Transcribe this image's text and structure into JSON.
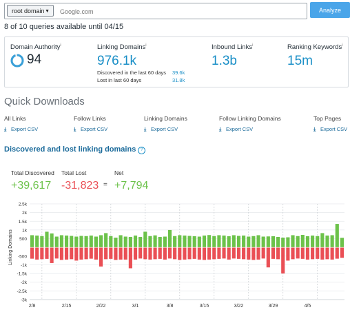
{
  "search": {
    "scope_label": "root domain",
    "placeholder": "Google.com",
    "analyze_label": "Analyze"
  },
  "quota_text": "8 of 10 queries available until 04/15",
  "metrics": {
    "domain_authority": {
      "label": "Domain Authority",
      "value": "94",
      "info": "i"
    },
    "linking_domains": {
      "label": "Linking Domains",
      "value": "976.1k",
      "info": "i",
      "discovered_label": "Discovered in the last 60 days",
      "discovered_value": "39.6k",
      "lost_label": "Lost in last 60 days",
      "lost_value": "31.8k"
    },
    "inbound_links": {
      "label": "Inbound Links",
      "value": "1.3b",
      "info": "i"
    },
    "ranking_keywords": {
      "label": "Ranking Keywords",
      "value": "15m",
      "info": "i"
    }
  },
  "quick_downloads": {
    "title": "Quick Downloads",
    "items": [
      {
        "label": "All Links",
        "link": "Export CSV"
      },
      {
        "label": "Follow Links",
        "link": "Export CSV"
      },
      {
        "label": "Linking Domains",
        "link": "Export CSV"
      },
      {
        "label": "Follow Linking Domains",
        "link": "Export CSV"
      },
      {
        "label": "Top Pages",
        "link": "Export CSV"
      }
    ]
  },
  "discovered_lost": {
    "title": "Discovered and lost linking domains",
    "total_discovered_label": "Total Discovered",
    "total_discovered_value": "+39,617",
    "total_lost_label": "Total Lost",
    "total_lost_value": "-31,823",
    "equals": "=",
    "net_label": "Net",
    "net_value": "+7,794"
  },
  "colors": {
    "accent": "#1a8fc7",
    "positive": "#6cc24a",
    "negative": "#ea4f55",
    "button": "#4aa5e9"
  },
  "chart_data": {
    "type": "bar",
    "ylabel": "Linking Domains",
    "ylim": [
      -3000,
      2500
    ],
    "yticks": [
      2500,
      2000,
      1500,
      1000,
      500,
      0,
      -500,
      -1000,
      -1500,
      -2000,
      -2500,
      -3000
    ],
    "ytick_labels": [
      "2.5k",
      "2k",
      "1.5k",
      "1k",
      "500",
      "",
      "-500",
      "-1k",
      "-1.5k",
      "-2k",
      "-2.5k",
      "-3k"
    ],
    "xtick_labels": [
      "2/8",
      "2/15",
      "2/22",
      "3/1",
      "3/8",
      "3/15",
      "3/22",
      "3/29",
      "4/5"
    ],
    "series": [
      {
        "name": "Discovered",
        "color": "#6cc24a",
        "values": [
          700,
          680,
          650,
          900,
          800,
          620,
          700,
          680,
          660,
          620,
          660,
          650,
          680,
          620,
          700,
          820,
          650,
          560,
          700,
          620,
          600,
          680,
          600,
          900,
          650,
          690,
          600,
          620,
          1000,
          650,
          700,
          680,
          660,
          640,
          620,
          680,
          710,
          650,
          700,
          680,
          640,
          700,
          660,
          680,
          620,
          650,
          700,
          620,
          630,
          640,
          600,
          560,
          580,
          700,
          650,
          720,
          640,
          680,
          650,
          820,
          680,
          700,
          1350,
          550
        ]
      },
      {
        "name": "Lost",
        "color": "#ea4f55",
        "values": [
          -650,
          -700,
          -680,
          -660,
          -900,
          -640,
          -720,
          -700,
          -680,
          -760,
          -700,
          -680,
          -650,
          -700,
          -1100,
          -680,
          -660,
          -720,
          -700,
          -700,
          -1200,
          -700,
          -640,
          -680,
          -700,
          -680,
          -660,
          -700,
          -640,
          -680,
          -720,
          -700,
          -680,
          -660,
          -700,
          -720,
          -700,
          -680,
          -660,
          -640,
          -700,
          -640,
          -660,
          -680,
          -700,
          -720,
          -700,
          -640,
          -1150,
          -660,
          -680,
          -1500,
          -760,
          -680,
          -640,
          -660,
          -700,
          -680,
          -660,
          -700,
          -680,
          -700,
          -650,
          -600
        ]
      }
    ]
  }
}
